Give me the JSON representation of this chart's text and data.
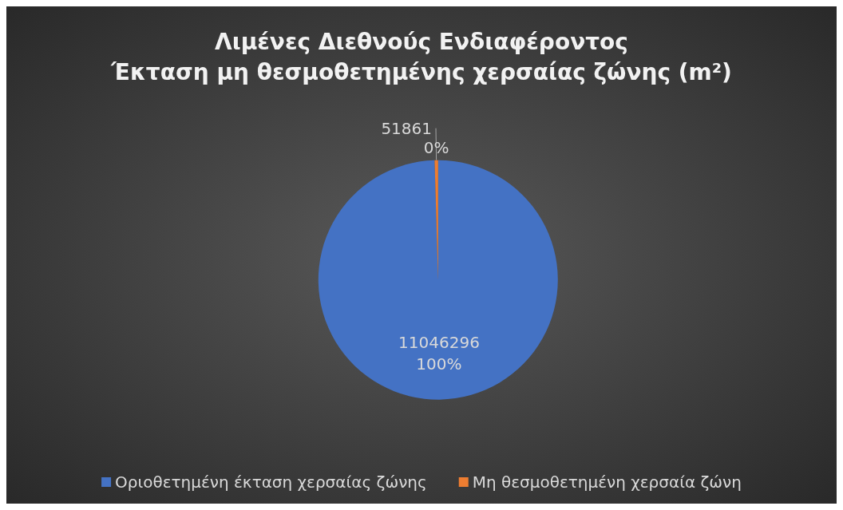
{
  "chart_data": {
    "type": "pie",
    "title": "Λιμένες Διεθνούς Ενδιαφέροντος\nΈκταση μη θεσμοθετημένης χερσαίας ζώνης (m²)",
    "categories": [
      "Οριοθετημένη έκταση χερσαίας ζώνης",
      "Μη θεσμοθετημένη χερσαία ζώνη"
    ],
    "values": [
      11046296,
      51861
    ],
    "colors": [
      "#4472c4",
      "#ed7d31"
    ],
    "data_labels": true,
    "annotations": [
      "100%",
      "0%"
    ],
    "legend": "bottom"
  }
}
